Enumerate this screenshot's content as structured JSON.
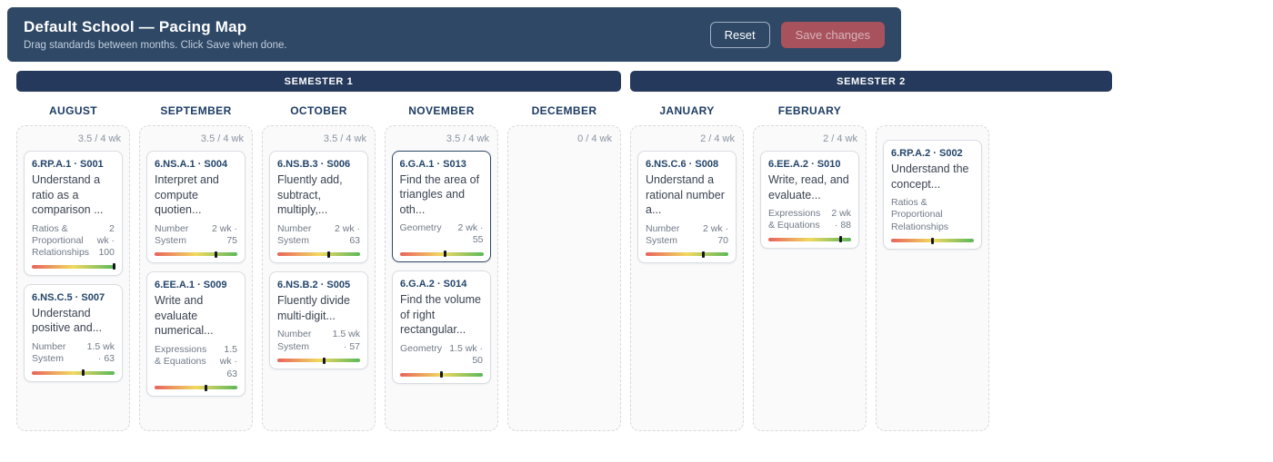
{
  "header": {
    "title": "Default School — Pacing Map",
    "subtitle": "Drag standards between months. Click Save when done.",
    "reset_label": "Reset",
    "save_label": "Save changes"
  },
  "semesters": [
    {
      "label": "SEMESTER 1"
    },
    {
      "label": "SEMESTER 2"
    }
  ],
  "months": [
    {
      "name": "AUGUST",
      "capacity": "3.5 / 4 wk",
      "cards": [
        {
          "code": "6.RP.A.1 · S001",
          "title": "Understand a ratio as a comparison ...",
          "category": "Ratios & Proportional Relationships",
          "load": "2 wk · 100",
          "mastery_percent": 100,
          "selected": false
        },
        {
          "code": "6.NS.C.5 · S007",
          "title": "Understand positive and...",
          "category": "Number System",
          "load": "1.5 wk · 63",
          "mastery_percent": 63,
          "selected": false
        }
      ]
    },
    {
      "name": "SEPTEMBER",
      "capacity": "3.5 / 4 wk",
      "cards": [
        {
          "code": "6.NS.A.1 · S004",
          "title": "Interpret and compute quotien...",
          "category": "Number System",
          "load": "2 wk · 75",
          "mastery_percent": 75,
          "selected": false
        },
        {
          "code": "6.EE.A.1 · S009",
          "title": "Write and evaluate numerical...",
          "category": "Expressions & Equations",
          "load": "1.5 wk · 63",
          "mastery_percent": 63,
          "selected": false
        }
      ]
    },
    {
      "name": "OCTOBER",
      "capacity": "3.5 / 4 wk",
      "cards": [
        {
          "code": "6.NS.B.3 · S006",
          "title": "Fluently add, subtract, multiply,...",
          "category": "Number System",
          "load": "2 wk · 63",
          "mastery_percent": 63,
          "selected": false
        },
        {
          "code": "6.NS.B.2 · S005",
          "title": "Fluently divide multi-digit...",
          "category": "Number System",
          "load": "1.5 wk · 57",
          "mastery_percent": 57,
          "selected": false
        }
      ]
    },
    {
      "name": "NOVEMBER",
      "capacity": "3.5 / 4 wk",
      "cards": [
        {
          "code": "6.G.A.1 · S013",
          "title": "Find the area of triangles and oth...",
          "category": "Geometry",
          "load": "2 wk · 55",
          "mastery_percent": 55,
          "selected": true
        },
        {
          "code": "6.G.A.2 · S014",
          "title": "Find the volume of right rectangular...",
          "category": "Geometry",
          "load": "1.5 wk · 50",
          "mastery_percent": 50,
          "selected": false
        }
      ]
    },
    {
      "name": "DECEMBER",
      "capacity": "0 / 4 wk",
      "cards": []
    },
    {
      "name": "JANUARY",
      "capacity": "2 / 4 wk",
      "cards": [
        {
          "code": "6.NS.C.6 · S008",
          "title": "Understand a rational number a...",
          "category": "Number System",
          "load": "2 wk · 70",
          "mastery_percent": 70,
          "selected": false
        }
      ]
    },
    {
      "name": "FEBRUARY",
      "capacity": "2 / 4 wk",
      "cards": [
        {
          "code": "6.EE.A.2 · S010",
          "title": "Write, read, and evaluate...",
          "category": "Expressions & Equations",
          "load": "2 wk · 88",
          "mastery_percent": 88,
          "selected": false
        }
      ]
    },
    {
      "name": "",
      "capacity": "",
      "cards": [
        {
          "code": "6.RP.A.2 · S002",
          "title": "Understand the concept...",
          "category": "Ratios & Proportional Relationships",
          "load": "",
          "mastery_percent": 50,
          "selected": false
        }
      ]
    }
  ],
  "colors": {
    "header_navy": "#2e4866",
    "semester_navy": "#24395b",
    "save_red": "#a8525d",
    "month_text": "#1e3c64",
    "gradient_start": "#e9635c",
    "gradient_mid": "#f0d95f",
    "gradient_end": "#5cb85c"
  }
}
